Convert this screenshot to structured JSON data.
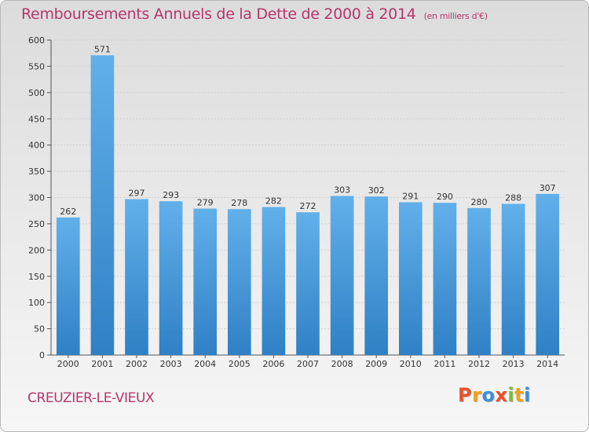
{
  "title": "Remboursements Annuels de la Dette de 2000 à 2014",
  "unit": "(en milliers d'€)",
  "place": "CREUZIER-LE-VIEUX",
  "logo": {
    "letters": [
      "P",
      "r",
      "o",
      "x",
      "i",
      "t",
      "i"
    ],
    "colors": [
      "#e8502c",
      "#f3a019",
      "#3a8fd8",
      "#e8502c",
      "#7dbb2f",
      "#f3a019",
      "#3a8fd8"
    ]
  },
  "colors": {
    "bar_top": "#62b0ea",
    "bar_bottom": "#2f80c5",
    "title": "#b5366a"
  },
  "chart_data": {
    "type": "bar",
    "categories": [
      "2000",
      "2001",
      "2002",
      "2003",
      "2004",
      "2005",
      "2006",
      "2007",
      "2008",
      "2009",
      "2010",
      "2011",
      "2012",
      "2013",
      "2014"
    ],
    "values": [
      262,
      571,
      297,
      293,
      279,
      278,
      282,
      272,
      303,
      302,
      291,
      290,
      280,
      288,
      307
    ],
    "ylim": [
      0,
      600
    ],
    "yticks": [
      0,
      50,
      100,
      150,
      200,
      250,
      300,
      350,
      400,
      450,
      500,
      550,
      600
    ],
    "grid": true
  }
}
